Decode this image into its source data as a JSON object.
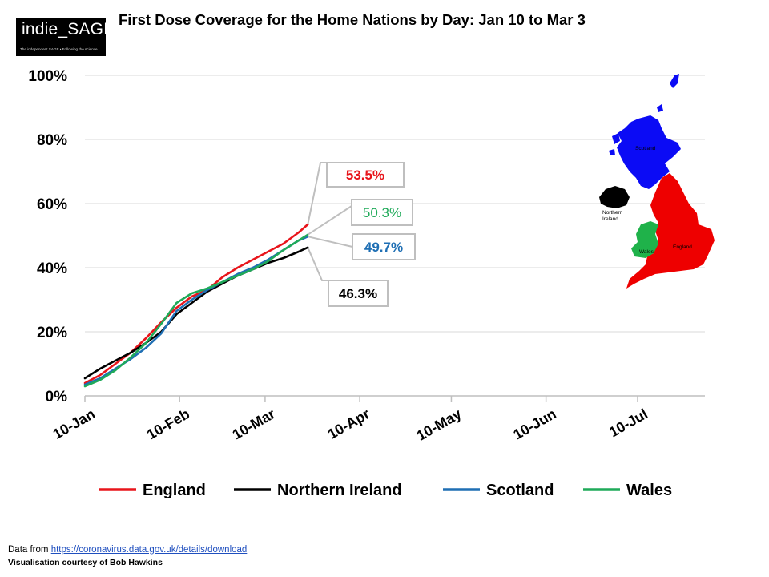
{
  "logo": {
    "title": "indie_SAGE",
    "tagline": "The independent SAGE • Following the science"
  },
  "title": "First Dose Coverage for the Home Nations by Day: Jan 10 to Mar 3",
  "footer": {
    "data_prefix": "Data from ",
    "data_link": "https://coronavirus.data.gov.uk/details/download",
    "credit": "Visualisation  courtesy of Bob Hawkins"
  },
  "map": {
    "regions": [
      {
        "name": "Scotland",
        "color": "#0b0bf5"
      },
      {
        "name": "Northern Ireland",
        "color": "#000000"
      },
      {
        "name": "England",
        "color": "#ee0000"
      },
      {
        "name": "Wales",
        "color": "#1fb24a"
      }
    ]
  },
  "chart_data": {
    "type": "line",
    "title": "First Dose Coverage for the Home Nations by Day: Jan 10 to Mar 3",
    "xlabel": "",
    "ylabel": "",
    "x_range": [
      0,
      181
    ],
    "ylim": [
      0,
      100
    ],
    "grid": true,
    "legend_position": "bottom",
    "x_ticks": [
      {
        "label": "10-Jan",
        "day": 0
      },
      {
        "label": "10-Feb",
        "day": 31
      },
      {
        "label": "10-Mar",
        "day": 59
      },
      {
        "label": "10-Apr",
        "day": 90
      },
      {
        "label": "10-May",
        "day": 120
      },
      {
        "label": "10-Jun",
        "day": 151
      },
      {
        "label": "10-Jul",
        "day": 181
      }
    ],
    "y_ticks": [
      {
        "label": "0%",
        "value": 0
      },
      {
        "label": "20%",
        "value": 20
      },
      {
        "label": "40%",
        "value": 40
      },
      {
        "label": "60%",
        "value": 60
      },
      {
        "label": "80%",
        "value": 80
      },
      {
        "label": "100%",
        "value": 100
      }
    ],
    "series": [
      {
        "name": "England",
        "color": "#e8151b",
        "final_label": "53.5%",
        "x": [
          0,
          5,
          10,
          15,
          20,
          25,
          30,
          35,
          40,
          45,
          50,
          55,
          60,
          65,
          70,
          73
        ],
        "y": [
          4.0,
          6.5,
          10.0,
          13.5,
          18.0,
          23.0,
          27.5,
          31.0,
          33.0,
          37.0,
          40.0,
          42.5,
          45.0,
          47.5,
          51.0,
          53.5
        ]
      },
      {
        "name": "Northern Ireland",
        "color": "#000000",
        "final_label": "46.3%",
        "x": [
          0,
          5,
          10,
          15,
          20,
          25,
          30,
          35,
          40,
          45,
          50,
          55,
          60,
          65,
          70,
          73
        ],
        "y": [
          5.5,
          8.5,
          11.0,
          13.5,
          16.5,
          20.0,
          25.5,
          29.0,
          32.5,
          35.0,
          37.5,
          39.5,
          41.5,
          43.0,
          45.0,
          46.3
        ]
      },
      {
        "name": "Scotland",
        "color": "#1f6fb4",
        "final_label": "49.7%",
        "x": [
          0,
          5,
          10,
          15,
          20,
          25,
          30,
          35,
          40,
          45,
          50,
          55,
          60,
          65,
          70,
          73
        ],
        "y": [
          3.5,
          5.5,
          8.5,
          11.5,
          15.0,
          19.5,
          26.5,
          30.0,
          33.0,
          35.5,
          38.0,
          40.0,
          42.5,
          45.5,
          48.5,
          49.7
        ]
      },
      {
        "name": "Wales",
        "color": "#1faa59",
        "final_label": "50.3%",
        "x": [
          0,
          5,
          10,
          15,
          20,
          25,
          30,
          35,
          40,
          45,
          50,
          55,
          60,
          65,
          70,
          73
        ],
        "y": [
          3.0,
          5.0,
          8.0,
          12.0,
          16.5,
          22.5,
          29.0,
          32.0,
          33.5,
          35.5,
          37.5,
          39.5,
          42.0,
          45.5,
          48.5,
          50.3
        ]
      }
    ]
  }
}
